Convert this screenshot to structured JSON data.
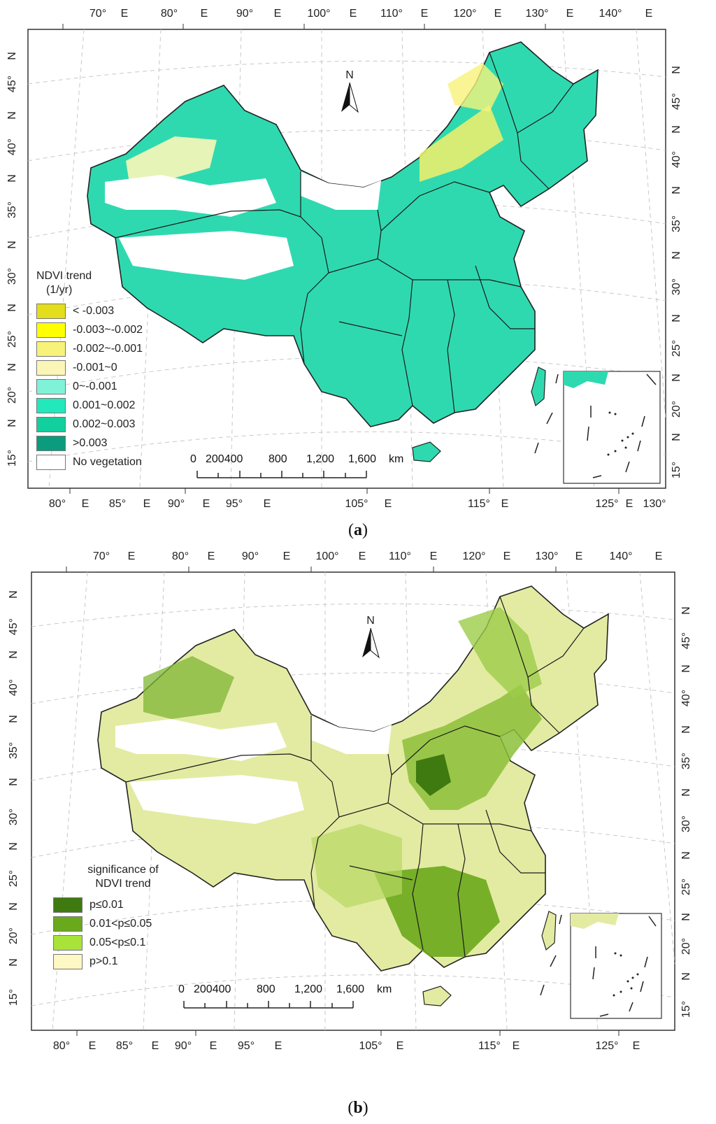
{
  "panel_a": {
    "caption_label": "a",
    "north_label": "N",
    "top_ticks": [
      "70°",
      "E",
      "80°",
      "E",
      "90°",
      "E",
      "100°",
      "E",
      "110°",
      "E",
      "120°",
      "E",
      "130°",
      "E",
      "140°",
      "E"
    ],
    "bottom_ticks": [
      "80°",
      "E",
      "85°",
      "E",
      "90°",
      "E",
      "95°",
      "E",
      "105°",
      "E",
      "115°",
      "E",
      "125°",
      "E",
      "130°"
    ],
    "left_ticks": [
      "N",
      "45°",
      "N",
      "40°",
      "N",
      "35°",
      "N",
      "30°",
      "N",
      "25°",
      "N",
      "20°",
      "N",
      "15°"
    ],
    "right_ticks": [
      "N",
      "45°",
      "N",
      "40°",
      "N",
      "35°",
      "N",
      "30°",
      "N",
      "25°",
      "N",
      "20°",
      "N",
      "15°"
    ],
    "legend": {
      "title_line1": "NDVI trend",
      "title_line2": "(1/yr)",
      "items": [
        {
          "label": "< -0.003",
          "color": "#e3dd1c"
        },
        {
          "label": "-0.003~-0.002",
          "color": "#ffff00"
        },
        {
          "label": "-0.002~-0.001",
          "color": "#f7f27a"
        },
        {
          "label": "-0.001~0",
          "color": "#fbf6b8"
        },
        {
          "label": "0~-0.001",
          "color": "#7ff2d8"
        },
        {
          "label": "0.001~0.002",
          "color": "#22e8bc"
        },
        {
          "label": "0.002~0.003",
          "color": "#12cf9e"
        },
        {
          "label": ">0.003",
          "color": "#0a9c7c"
        },
        {
          "label": "No vegetation",
          "color": "#ffffff"
        }
      ]
    },
    "scale": {
      "labels": [
        "0",
        "200400",
        "800",
        "1,200",
        "1,600",
        "km"
      ]
    }
  },
  "panel_b": {
    "caption_label": "b",
    "north_label": "N",
    "top_ticks": [
      "70°",
      "E",
      "80°",
      "E",
      "90°",
      "E",
      "100°",
      "E",
      "110°",
      "E",
      "120°",
      "E",
      "130°",
      "E",
      "140°",
      "E"
    ],
    "bottom_ticks": [
      "80°",
      "E",
      "85°",
      "E",
      "90°",
      "E",
      "95°",
      "E",
      "105°",
      "E",
      "115°",
      "E",
      "125°",
      "E"
    ],
    "left_ticks": [
      "N",
      "45°",
      "N",
      "40°",
      "N",
      "35°",
      "N",
      "30°",
      "N",
      "25°",
      "N",
      "20°",
      "N",
      "15°"
    ],
    "right_ticks": [
      "N",
      "45°",
      "N",
      "40°",
      "N",
      "35°",
      "N",
      "30°",
      "N",
      "25°",
      "N",
      "20°",
      "N",
      "15°"
    ],
    "legend": {
      "title_line1": "significance of",
      "title_line2": "NDVI trend",
      "items": [
        {
          "label": "p≤0.01",
          "color": "#3f7a10"
        },
        {
          "label": "0.01<p≤0.05",
          "color": "#6aa91c"
        },
        {
          "label": "0.05<p≤0.1",
          "color": "#a9e33a"
        },
        {
          "label": "p>0.1",
          "color": "#fdf8c4"
        }
      ]
    },
    "scale": {
      "labels": [
        "0",
        "200400",
        "800",
        "1,200",
        "1,600",
        "km"
      ]
    }
  }
}
